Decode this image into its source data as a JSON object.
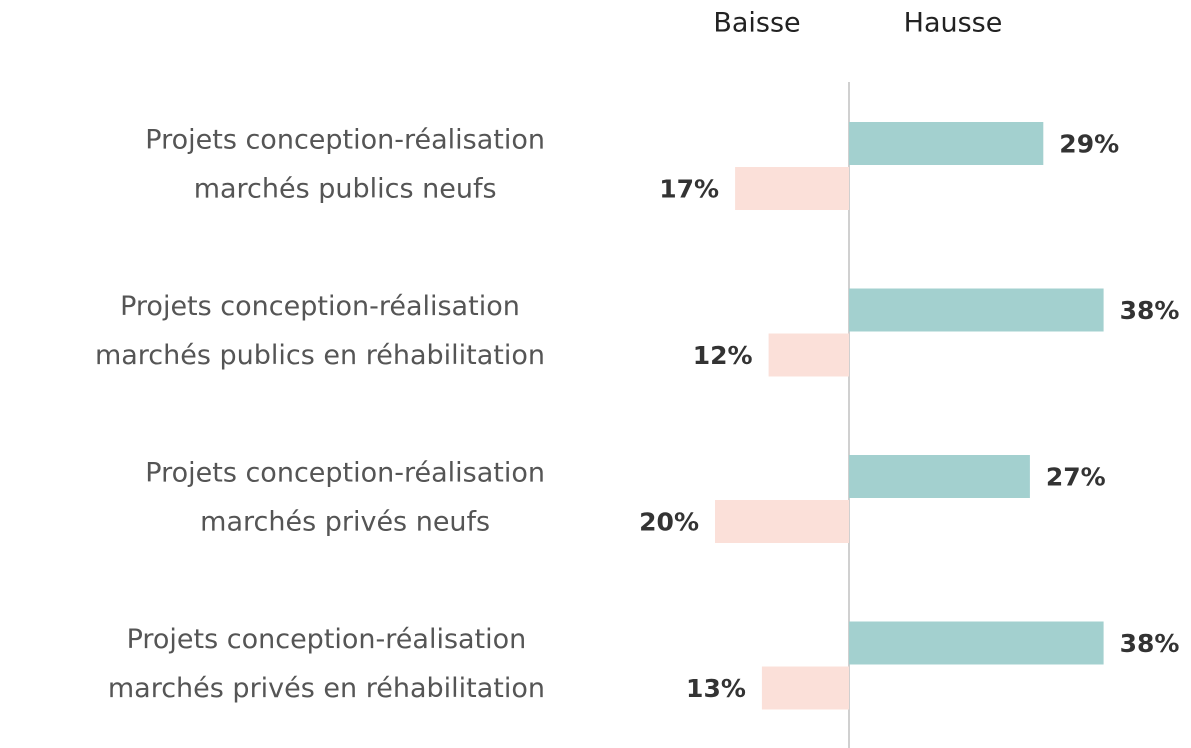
{
  "chart_data": {
    "type": "diverging-bar",
    "categories": [
      "Projets conception-réalisation\nmarchés publics neufs",
      "Projets conception-réalisation\nmarchés publics en réhabilitation",
      "Projets conception-réalisation\nmarchés privés neufs",
      "Projets conception-réalisation\nmarchés privés en réhabilitation"
    ],
    "series": [
      {
        "name": "Baisse",
        "color": "#fbe0d9",
        "direction": "left",
        "values": [
          17,
          12,
          20,
          13
        ],
        "value_labels": [
          "17%",
          "12%",
          "20%",
          "13%"
        ]
      },
      {
        "name": "Hausse",
        "color": "#a3d0cf",
        "direction": "right",
        "values": [
          29,
          38,
          27,
          38
        ],
        "value_labels": [
          "29%",
          "38%",
          "27%",
          "38%"
        ]
      }
    ]
  }
}
